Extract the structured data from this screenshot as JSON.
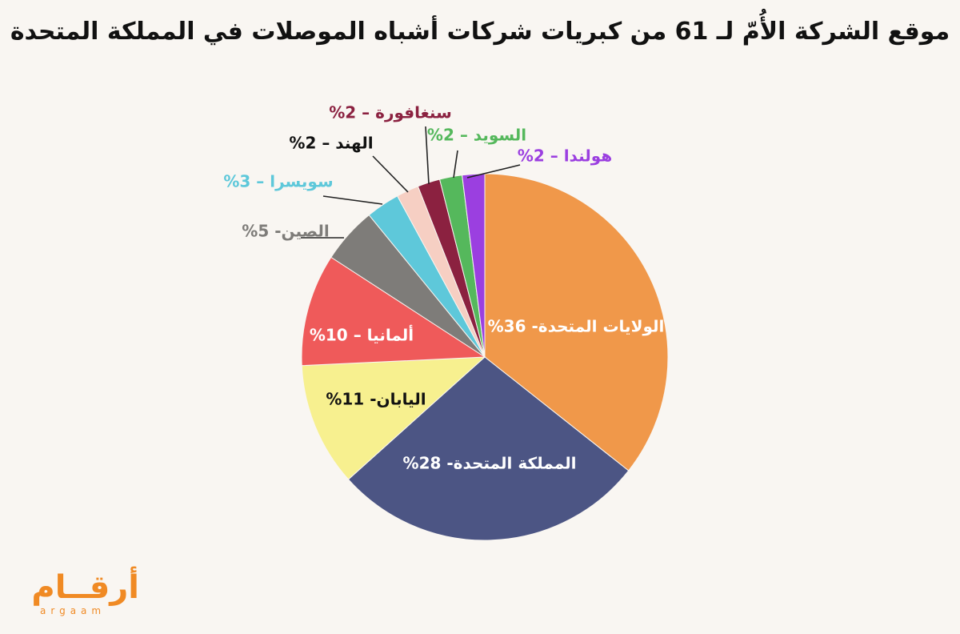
{
  "chart_data": {
    "type": "pie",
    "title": "موقع الشركة الأُمّ لـ 61 من كبريات شركات أشباه الموصلات في المملكة المتحدة",
    "slices": [
      {
        "label": "الولايات المتحدة- 36%",
        "value": 36,
        "color": "#f0984a",
        "text_color": "#ffffff"
      },
      {
        "label": "المملكة المتحدة- 28%",
        "value": 28,
        "color": "#4c5584",
        "text_color": "#ffffff"
      },
      {
        "label": "اليابان- 11%",
        "value": 11,
        "color": "#f7f08f",
        "text_color": "#111111"
      },
      {
        "label": "ألمانيا – 10%",
        "value": 10,
        "color": "#ef5a5a",
        "text_color": "#ffffff"
      },
      {
        "label": "الصين- 5%",
        "value": 5,
        "color": "#7e7c79",
        "text_color": "#7e7c79"
      },
      {
        "label": "سويسرا – 3%",
        "value": 3,
        "color": "#5ec8da",
        "text_color": "#5ec8da"
      },
      {
        "label": "الهند – 2%",
        "value": 2,
        "color": "#f6cfc3",
        "text_color": "#111111"
      },
      {
        "label": "سنغافورة – 2%",
        "value": 2,
        "color": "#8b2140",
        "text_color": "#8b2140"
      },
      {
        "label": "السويد – 2%",
        "value": 2,
        "color": "#55b85c",
        "text_color": "#55b85c"
      },
      {
        "label": "هولندا – 2%",
        "value": 2,
        "color": "#9b3fe0",
        "text_color": "#9b3fe0"
      }
    ]
  },
  "logo": {
    "arabic": "أرقــام",
    "latin": "argaam",
    "color": "#f08a24"
  }
}
